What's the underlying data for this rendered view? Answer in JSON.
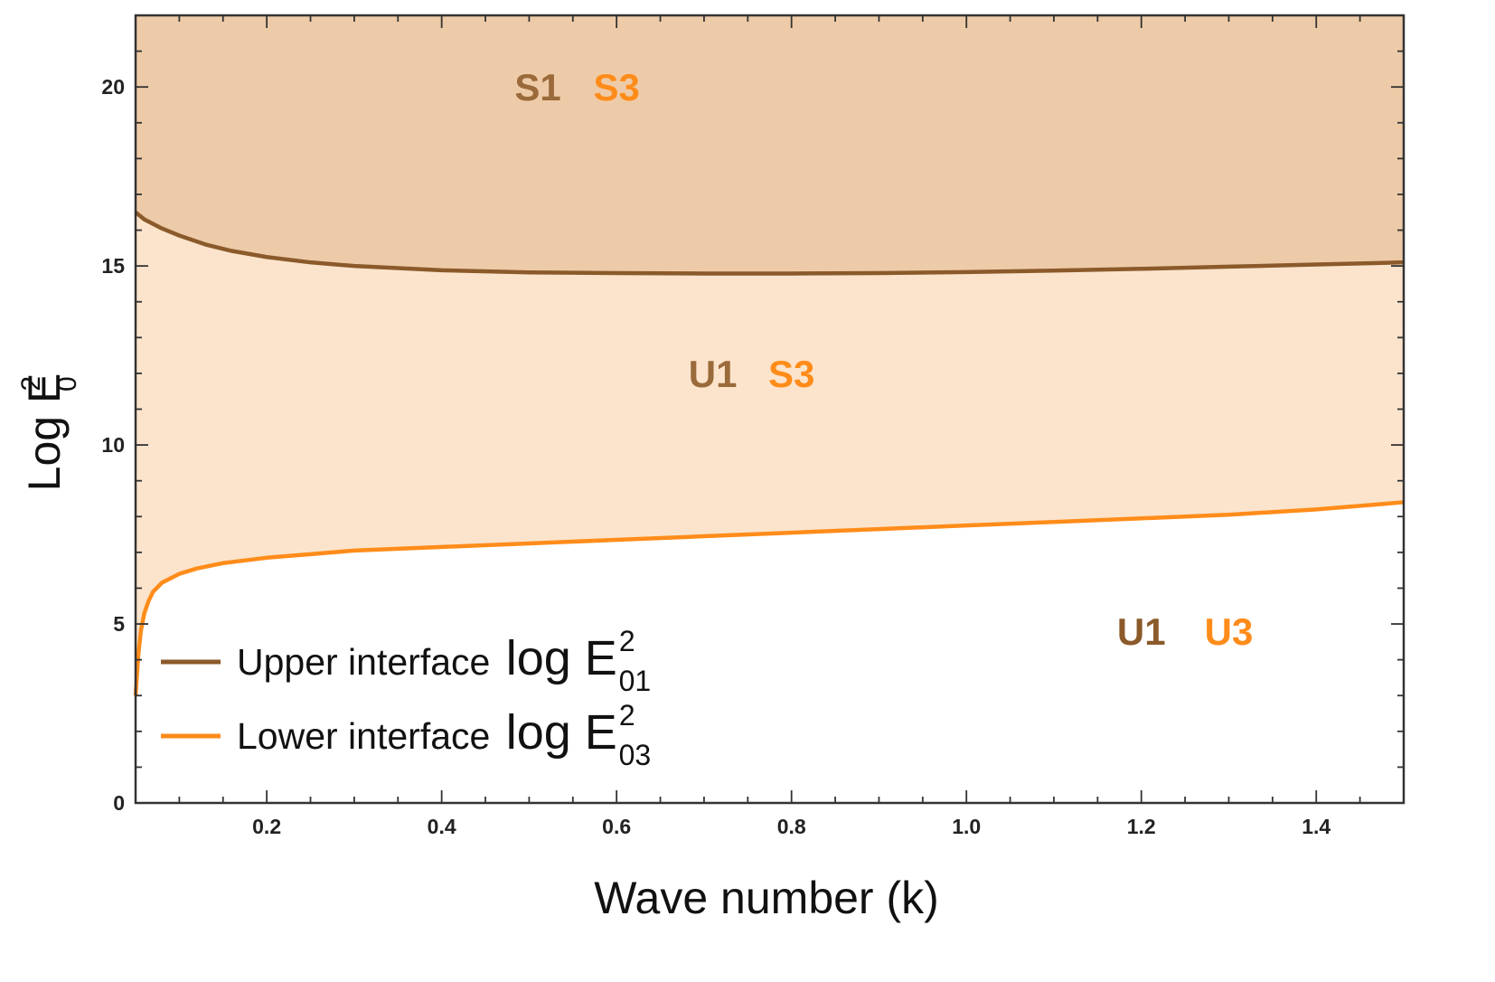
{
  "chart_data": {
    "type": "line",
    "title": "",
    "xlabel": "Wave number (k)",
    "ylabel": "Log E",
    "ylabel_sup": "2",
    "ylabel_sub": "0",
    "xlim": [
      0.05,
      1.5
    ],
    "ylim": [
      0,
      22
    ],
    "x_ticks": [
      {
        "value": 0.2,
        "label": "0.2"
      },
      {
        "value": 0.4,
        "label": "0.4"
      },
      {
        "value": 0.6,
        "label": "0.6"
      },
      {
        "value": 0.8,
        "label": "0.8"
      },
      {
        "value": 1.0,
        "label": "1.0"
      },
      {
        "value": 1.2,
        "label": "1.2"
      },
      {
        "value": 1.4,
        "label": "1.4"
      }
    ],
    "y_ticks": [
      {
        "value": 0,
        "label": "0"
      },
      {
        "value": 5,
        "label": "5"
      },
      {
        "value": 10,
        "label": "10"
      },
      {
        "value": 15,
        "label": "15"
      },
      {
        "value": 20,
        "label": "20"
      }
    ],
    "x_minor_step": 0.05,
    "y_minor_step": 1,
    "grid": false,
    "legend_position": "bottom-left",
    "series": [
      {
        "key": "upper",
        "legend_text": "Upper interface ",
        "legend_math": "log E",
        "legend_sup": "2",
        "legend_sub": "01",
        "color": "#8B5A2B",
        "x": [
          0.05,
          0.06,
          0.08,
          0.1,
          0.13,
          0.16,
          0.2,
          0.25,
          0.3,
          0.4,
          0.5,
          0.6,
          0.7,
          0.8,
          0.9,
          1.0,
          1.1,
          1.2,
          1.3,
          1.4,
          1.5
        ],
        "y": [
          16.5,
          16.3,
          16.05,
          15.85,
          15.6,
          15.42,
          15.25,
          15.1,
          15.0,
          14.88,
          14.82,
          14.8,
          14.79,
          14.79,
          14.8,
          14.83,
          14.87,
          14.92,
          14.98,
          15.04,
          15.1
        ]
      },
      {
        "key": "lower",
        "legend_text": "Lower interface ",
        "legend_math": "log E",
        "legend_sup": "2",
        "legend_sub": "03",
        "color": "#FF8C1A",
        "x": [
          0.05,
          0.053,
          0.056,
          0.06,
          0.065,
          0.07,
          0.08,
          0.1,
          0.12,
          0.15,
          0.2,
          0.25,
          0.3,
          0.4,
          0.5,
          0.6,
          0.7,
          0.8,
          0.9,
          1.0,
          1.1,
          1.2,
          1.3,
          1.4,
          1.5
        ],
        "y": [
          3.0,
          4.1,
          4.8,
          5.3,
          5.65,
          5.9,
          6.15,
          6.4,
          6.55,
          6.7,
          6.85,
          6.95,
          7.05,
          7.15,
          7.25,
          7.35,
          7.45,
          7.55,
          7.65,
          7.75,
          7.85,
          7.95,
          8.05,
          8.2,
          8.4
        ]
      }
    ],
    "regions": [
      {
        "key": "top",
        "between": [
          "upper",
          "top"
        ],
        "color": "#EECBA8"
      },
      {
        "key": "middle",
        "between": [
          "lower",
          "upper"
        ],
        "color": "#FCE4CC"
      }
    ],
    "annotations": [
      {
        "text": "S1",
        "x": 0.51,
        "y": 20.0,
        "color": "#9A6A3A"
      },
      {
        "text": "S3",
        "x": 0.6,
        "y": 20.0,
        "color": "#FF8C1A"
      },
      {
        "text": "U1",
        "x": 0.71,
        "y": 12.0,
        "color": "#9A6A3A"
      },
      {
        "text": "S3",
        "x": 0.8,
        "y": 12.0,
        "color": "#FF8C1A"
      },
      {
        "text": "U1",
        "x": 1.2,
        "y": 4.8,
        "color": "#8B5A2B"
      },
      {
        "text": "U3",
        "x": 1.3,
        "y": 4.8,
        "color": "#FF8C1A"
      }
    ]
  }
}
